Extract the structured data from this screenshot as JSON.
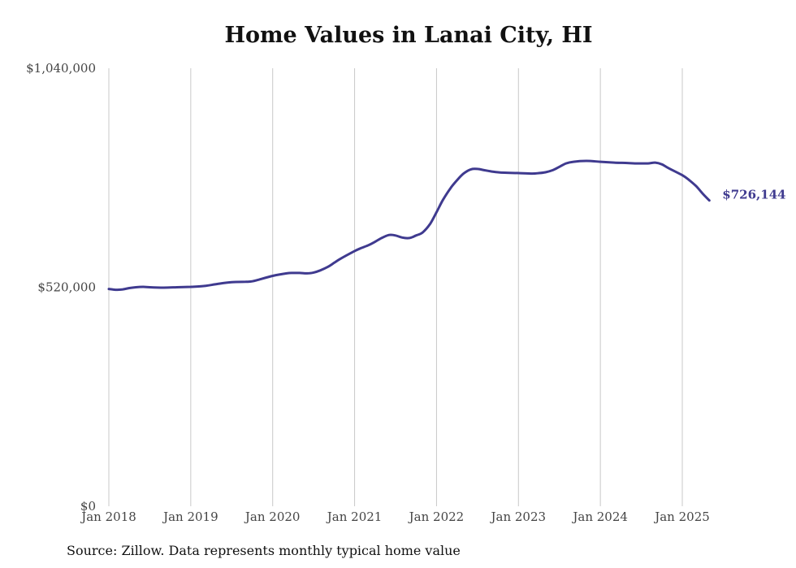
{
  "chart_data": {
    "type": "line",
    "title": "Home Values in Lanai City, HI",
    "source": "Source: Zillow. Data represents monthly typical home value",
    "xlabel": "",
    "ylabel": "",
    "ylim": [
      0,
      1040000
    ],
    "y_ticks": [
      {
        "value": 0,
        "label": "$0"
      },
      {
        "value": 520000,
        "label": "$520,000"
      },
      {
        "value": 1040000,
        "label": "$1,040,000"
      }
    ],
    "x_ticks": [
      {
        "value": 2018.0,
        "label": "Jan 2018"
      },
      {
        "value": 2019.0,
        "label": "Jan 2019"
      },
      {
        "value": 2020.0,
        "label": "Jan 2020"
      },
      {
        "value": 2021.0,
        "label": "Jan 2021"
      },
      {
        "value": 2022.0,
        "label": "Jan 2022"
      },
      {
        "value": 2023.0,
        "label": "Jan 2023"
      },
      {
        "value": 2024.0,
        "label": "Jan 2024"
      },
      {
        "value": 2025.0,
        "label": "Jan 2025"
      }
    ],
    "grid": {
      "vertical": true,
      "horizontal": false
    },
    "line_color": "#3f3a8f",
    "grid_color": "#c8c8c8",
    "end_label": "$726,144",
    "series": [
      {
        "x": [
          2018.0,
          2018.08,
          2018.17,
          2018.25,
          2018.33,
          2018.42,
          2018.5,
          2018.67,
          2018.83,
          2019.0,
          2019.17,
          2019.33,
          2019.5,
          2019.67,
          2019.75,
          2019.83,
          2020.0,
          2020.17,
          2020.25,
          2020.33,
          2020.42,
          2020.5,
          2020.58,
          2020.67,
          2020.75,
          2020.83,
          2021.0,
          2021.08,
          2021.17,
          2021.25,
          2021.33,
          2021.42,
          2021.5,
          2021.58,
          2021.67,
          2021.75,
          2021.83,
          2021.92,
          2022.0,
          2022.08,
          2022.17,
          2022.25,
          2022.33,
          2022.42,
          2022.5,
          2022.58,
          2022.67,
          2022.75,
          2022.83,
          2023.0,
          2023.17,
          2023.25,
          2023.33,
          2023.42,
          2023.5,
          2023.58,
          2023.67,
          2023.83,
          2024.0,
          2024.17,
          2024.33,
          2024.42,
          2024.5,
          2024.58,
          2024.67,
          2024.75,
          2024.83,
          2025.0,
          2025.08,
          2025.17,
          2025.25,
          2025.33
        ],
        "y": [
          516000,
          514000,
          515000,
          518000,
          520000,
          521000,
          520000,
          519000,
          520000,
          521000,
          523000,
          528000,
          532000,
          533000,
          534000,
          538000,
          547000,
          553000,
          554000,
          554000,
          553000,
          555000,
          560000,
          568000,
          578000,
          588000,
          606000,
          613000,
          620000,
          628000,
          637000,
          644000,
          643000,
          638000,
          637000,
          643000,
          650000,
          670000,
          698000,
          728000,
          755000,
          774000,
          790000,
          800000,
          801000,
          798000,
          795000,
          793000,
          792000,
          791000,
          790000,
          791000,
          793000,
          798000,
          806000,
          814000,
          818000,
          820000,
          818000,
          816000,
          815000,
          814000,
          814000,
          814000,
          816000,
          812000,
          803000,
          786000,
          775000,
          760000,
          742000,
          726144
        ]
      }
    ]
  }
}
